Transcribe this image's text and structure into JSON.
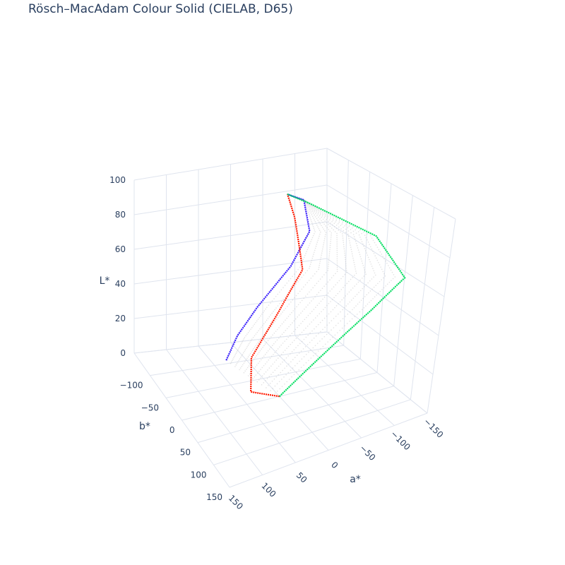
{
  "chart_data": {
    "type": "scatter3d",
    "title": "Rösch–MacAdam Colour Solid (CIELAB, D65)",
    "axes": {
      "x": {
        "label": "a*",
        "range": [
          -150,
          150
        ],
        "ticks": [
          "−150",
          "−100",
          "−50",
          "0",
          "50",
          "100",
          "150"
        ]
      },
      "y": {
        "label": "b*",
        "range": [
          -150,
          150
        ],
        "ticks": [
          "−100",
          "−50",
          "0",
          "50",
          "100",
          "150"
        ]
      },
      "z": {
        "label": "L*",
        "range": [
          0,
          100
        ],
        "ticks": [
          "0",
          "20",
          "40",
          "60",
          "80",
          "100"
        ]
      }
    },
    "grid": true,
    "legend": "none",
    "solid_points_colour": "#bfbfbf",
    "boundary_loci": [
      {
        "colour": "#3a20ff",
        "points": [
          [
            28,
            -108,
            0
          ],
          [
            10,
            -110,
            12
          ],
          [
            -10,
            -90,
            30
          ],
          [
            -40,
            -55,
            55
          ],
          [
            -55,
            -35,
            75
          ],
          [
            -30,
            -10,
            95
          ],
          [
            0,
            0,
            100
          ]
        ]
      },
      {
        "colour": "#ff1a00",
        "points": [
          [
            0,
            0,
            0
          ],
          [
            55,
            20,
            10
          ],
          [
            80,
            67,
            35
          ],
          [
            60,
            100,
            58
          ],
          [
            25,
            95,
            75
          ],
          [
            5,
            30,
            92
          ],
          [
            0,
            0,
            100
          ]
        ]
      },
      {
        "colour": "#00e060",
        "points": [
          [
            0,
            0,
            0
          ],
          [
            -60,
            15,
            20
          ],
          [
            -100,
            60,
            45
          ],
          [
            -120,
            100,
            65
          ],
          [
            -85,
            80,
            85
          ],
          [
            -20,
            20,
            97
          ],
          [
            0,
            0,
            100
          ]
        ]
      }
    ]
  }
}
